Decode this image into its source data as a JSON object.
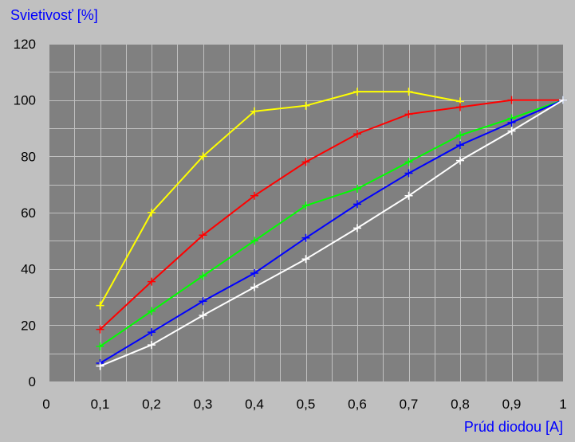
{
  "chart_data": {
    "type": "line",
    "title": "",
    "ylabel": "Svietivosť [%]",
    "xlabel": "Prúd diodou [A]",
    "xlim": [
      0,
      1
    ],
    "ylim": [
      0,
      120
    ],
    "x_ticks": [
      "0",
      "0,1",
      "0,2",
      "0,3",
      "0,4",
      "0,5",
      "0,6",
      "0,7",
      "0,8",
      "0,9",
      "1"
    ],
    "y_ticks": [
      "0",
      "20",
      "40",
      "60",
      "80",
      "100",
      "120"
    ],
    "grid": true,
    "plot_background": "#808080",
    "page_background": "#c0c0c0",
    "grid_color": "#c0c0c0",
    "series": [
      {
        "color": "#ffff00",
        "x": [
          0.1,
          0.2,
          0.3,
          0.4,
          0.5,
          0.6,
          0.7,
          0.8
        ],
        "values": [
          27,
          60,
          80,
          96,
          98,
          103,
          103,
          99.5
        ]
      },
      {
        "color": "#ff0000",
        "x": [
          0.1,
          0.2,
          0.3,
          0.4,
          0.5,
          0.6,
          0.7,
          0.8,
          0.9,
          1
        ],
        "values": [
          18.5,
          35.5,
          52,
          66,
          78,
          88,
          95,
          97.5,
          100,
          100
        ]
      },
      {
        "color": "#00ff00",
        "x": [
          0.1,
          0.2,
          0.3,
          0.4,
          0.5,
          0.6,
          0.7,
          0.8,
          0.9,
          1
        ],
        "values": [
          12.5,
          25,
          37.5,
          50,
          62.5,
          68.5,
          78,
          87.5,
          93.5,
          100
        ]
      },
      {
        "color": "#0000ff",
        "x": [
          0.1,
          0.2,
          0.3,
          0.4,
          0.5,
          0.6,
          0.7,
          0.8,
          0.9,
          1
        ],
        "values": [
          6.5,
          17.5,
          28.5,
          38.5,
          51,
          63,
          74,
          84,
          92,
          100
        ]
      },
      {
        "color": "#ffffff",
        "x": [
          0.1,
          0.2,
          0.3,
          0.4,
          0.5,
          0.6,
          0.7,
          0.8,
          0.9,
          1
        ],
        "values": [
          5.5,
          13,
          23.5,
          33.5,
          43.5,
          54.5,
          66,
          78.5,
          89,
          100
        ]
      }
    ]
  }
}
